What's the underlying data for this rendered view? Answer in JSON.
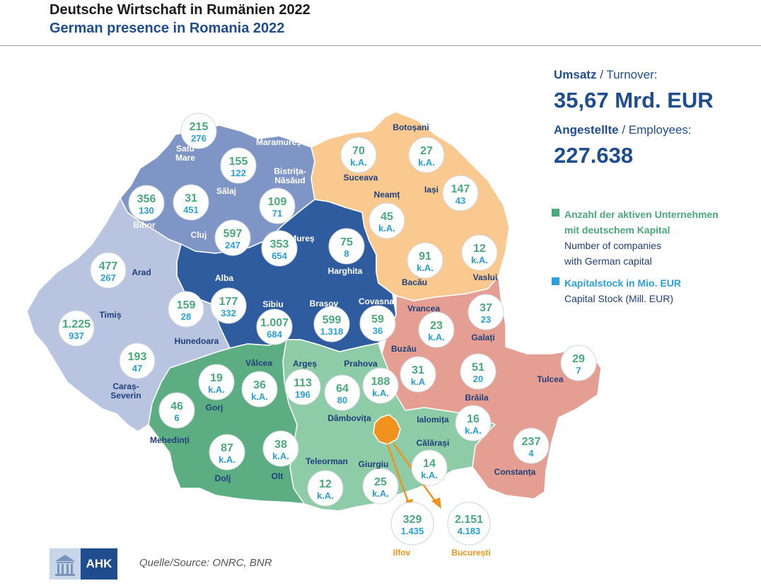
{
  "title": {
    "de": "Deutsche Wirtschaft in Rumänien 2022",
    "en": "German presence in Romania 2022"
  },
  "panel": {
    "turnover_de": "Umsatz",
    "turnover_en": " / Turnover:",
    "turnover_value": "35,67 Mrd. EUR",
    "employees_de": "Angestellte",
    "employees_en": " / Employees:",
    "employees_value": "227.638"
  },
  "legend": {
    "companies_de_1": "Anzahl der aktiven Unternehmen",
    "companies_de_2": "mit deutschem Kapital",
    "companies_en_1": "Number of companies",
    "companies_en_2": "with German capital",
    "capital_de": "Kapitalstock in Mio. EUR",
    "capital_en": "Capital Stock (Mill. EUR)"
  },
  "colors": {
    "north_west": "#7f95c6",
    "centre": "#2f5c9f",
    "north_east": "#f9c98f",
    "south_east": "#e59f92",
    "south_muntenia": "#8ecba7",
    "south_west": "#5cae82",
    "west": "#b9c4e0",
    "bucharest_ilfov": "#f0921d",
    "value_companies": "#4aa97a",
    "value_capital": "#2a9fd8",
    "brand": "#1f4d8f"
  },
  "counties": [
    {
      "name": "Satu\nMare",
      "companies": "215",
      "capital": "276"
    },
    {
      "name": "Maramureș",
      "companies": "155",
      "capital": "122"
    },
    {
      "name": "Bistrița-\nNăsăud",
      "companies": "109",
      "capital": "71"
    },
    {
      "name": "Sălaj",
      "companies": "31",
      "capital": "451"
    },
    {
      "name": "Bihor",
      "companies": "356",
      "capital": "130"
    },
    {
      "name": "Cluj",
      "companies": "597",
      "capital": "247"
    },
    {
      "name": "Mureș",
      "companies": "353",
      "capital": "654"
    },
    {
      "name": "Harghita",
      "companies": "75",
      "capital": "8"
    },
    {
      "name": "Alba",
      "companies": "177",
      "capital": "332"
    },
    {
      "name": "Sibiu",
      "companies": "1.007",
      "capital": "684"
    },
    {
      "name": "Brașov",
      "companies": "599",
      "capital": "1.318"
    },
    {
      "name": "Covasna",
      "companies": "59",
      "capital": "36"
    },
    {
      "name": "Botoșani",
      "companies": "27",
      "capital": "k.A."
    },
    {
      "name": "Suceava",
      "companies": "70",
      "capital": "k.A."
    },
    {
      "name": "Neamț",
      "companies": "45",
      "capital": "k.A."
    },
    {
      "name": "Iași",
      "companies": "147",
      "capital": "43"
    },
    {
      "name": "Bacău",
      "companies": "91",
      "capital": "k.A."
    },
    {
      "name": "Vaslui",
      "companies": "12",
      "capital": "k.A."
    },
    {
      "name": "Vrancea",
      "companies": "23",
      "capital": "k.A."
    },
    {
      "name": "Galați",
      "companies": "37",
      "capital": "23"
    },
    {
      "name": "Buzău",
      "companies": "31",
      "capital": "k.A"
    },
    {
      "name": "Brăila",
      "companies": "51",
      "capital": "20"
    },
    {
      "name": "Tulcea",
      "companies": "29",
      "capital": "7"
    },
    {
      "name": "Constanța",
      "companies": "237",
      "capital": "4"
    },
    {
      "name": "Arad",
      "companies": "477",
      "capital": "267"
    },
    {
      "name": "Timiș",
      "companies": "1.225",
      "capital": "937"
    },
    {
      "name": "Hunedoara",
      "companies": "159",
      "capital": "28"
    },
    {
      "name": "Caraș-\nSeverin",
      "companies": "193",
      "capital": "47"
    },
    {
      "name": "Mehedinți",
      "companies": "46",
      "capital": "6"
    },
    {
      "name": "Gorj",
      "companies": "19",
      "capital": "k.A."
    },
    {
      "name": "Vâlcea",
      "companies": "36",
      "capital": "k.A."
    },
    {
      "name": "Dolj",
      "companies": "87",
      "capital": "k.A."
    },
    {
      "name": "Olt",
      "companies": "38",
      "capital": "k.A."
    },
    {
      "name": "Argeș",
      "companies": "113",
      "capital": "196"
    },
    {
      "name": "Dâmbovița",
      "companies": "64",
      "capital": "80"
    },
    {
      "name": "Prahova",
      "companies": "188",
      "capital": "k.A."
    },
    {
      "name": "Teleorman",
      "companies": "12",
      "capital": "k.A."
    },
    {
      "name": "Giurgiu",
      "companies": "25",
      "capital": "k.A."
    },
    {
      "name": "Ialomița",
      "companies": "16",
      "capital": "k.A."
    },
    {
      "name": "Călărași",
      "companies": "14",
      "capital": "k.A."
    },
    {
      "name": "Ilfov",
      "companies": "329",
      "capital": "1.435"
    },
    {
      "name": "București",
      "companies": "2.151",
      "capital": "4.183"
    }
  ],
  "footer": {
    "logo_text": "AHK",
    "source": "Quelle/Source: ONRC, BNR"
  }
}
